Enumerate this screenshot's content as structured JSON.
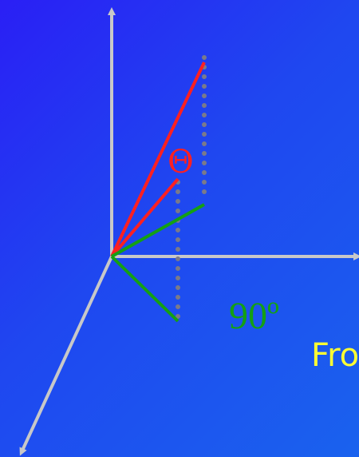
{
  "labels": {
    "theta": "Θ",
    "right_angle": "90º",
    "side_text": "Fro"
  },
  "colors": {
    "axis": "#c8c8c8",
    "red_vector": "#ff2020",
    "green_vector": "#14a014",
    "projection": "#7a7a8a",
    "theta_label": "#ff2020",
    "angle_label": "#14a014",
    "side_text": "#ffff33"
  }
}
